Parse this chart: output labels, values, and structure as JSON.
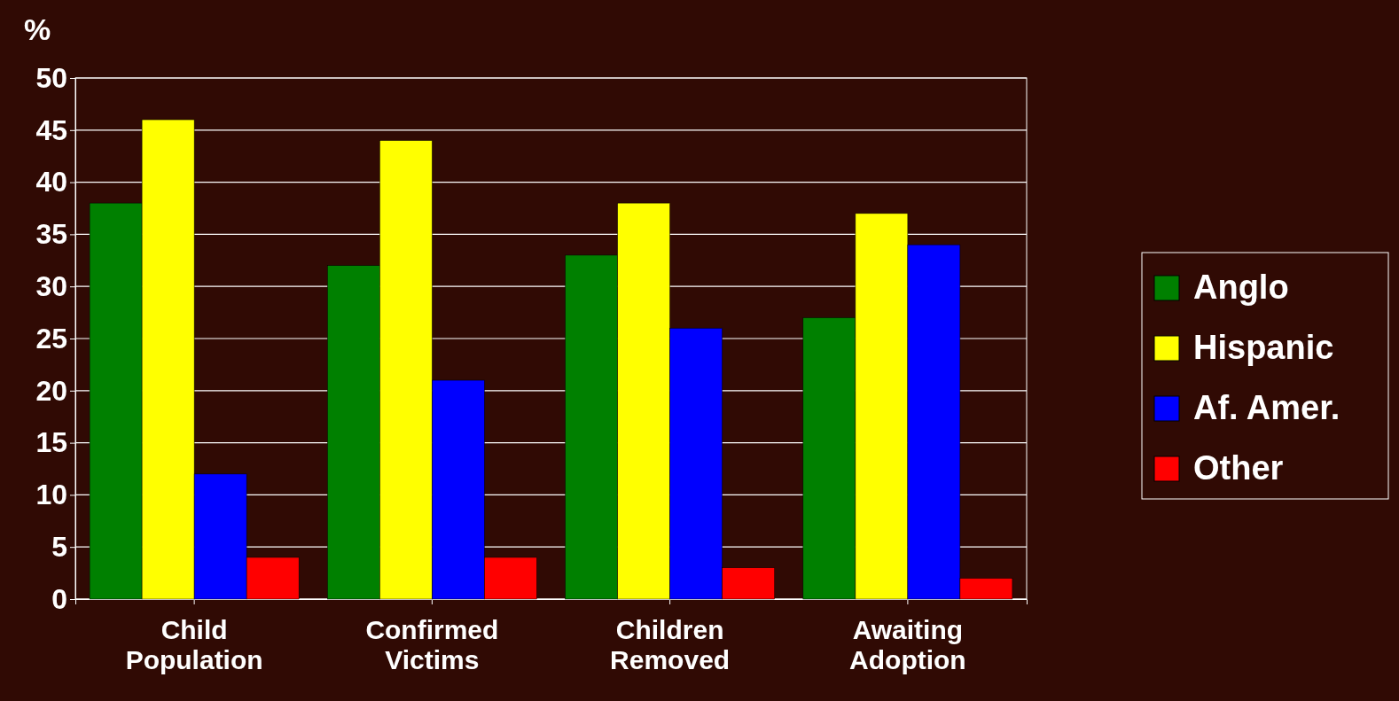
{
  "chart_data": {
    "type": "bar",
    "ylabel": "%",
    "categories": [
      "Child Population",
      "Confirmed Victims",
      "Children Removed",
      "Awaiting Adoption"
    ],
    "series": [
      {
        "name": "Anglo",
        "color": "#008000",
        "values": [
          38,
          32,
          33,
          27
        ]
      },
      {
        "name": "Hispanic",
        "color": "#ffff00",
        "values": [
          46,
          44,
          38,
          37
        ]
      },
      {
        "name": "Af. Amer.",
        "color": "#0000ff",
        "values": [
          12,
          21,
          26,
          34
        ]
      },
      {
        "name": "Other",
        "color": "#ff0000",
        "values": [
          4,
          4,
          3,
          2
        ]
      }
    ],
    "ylim": [
      0,
      50
    ],
    "yticks": [
      0,
      5,
      10,
      15,
      20,
      25,
      30,
      35,
      40,
      45,
      50
    ],
    "grid": "y",
    "legend": "right"
  }
}
